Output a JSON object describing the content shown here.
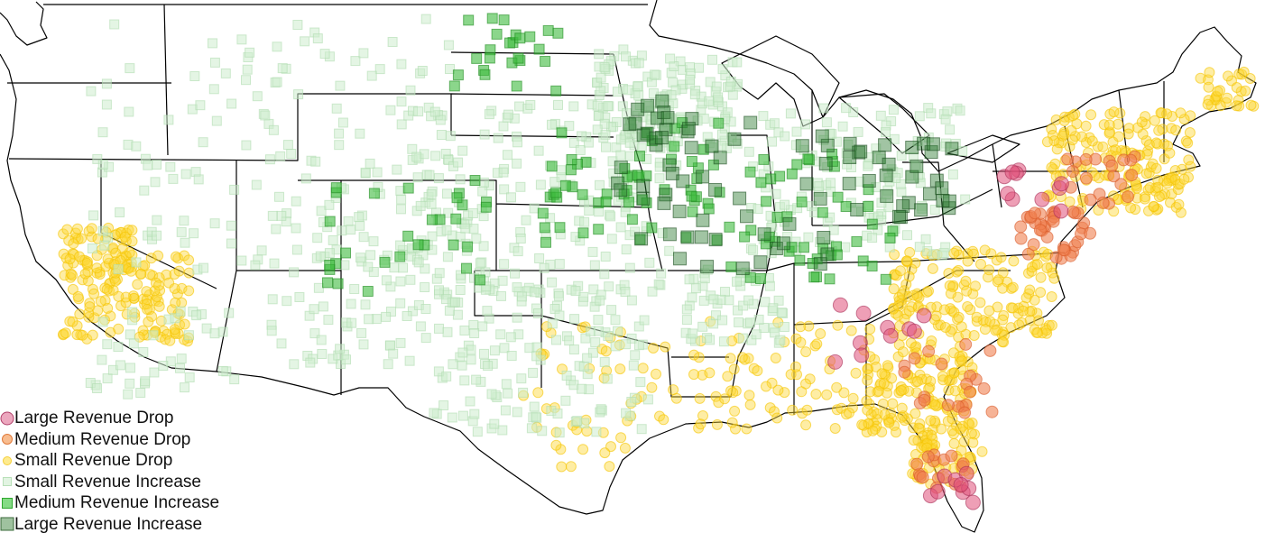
{
  "legend": [
    {
      "label": "Large Revenue Drop",
      "shape": "circle",
      "size": "large",
      "fill": "#e68aa8",
      "stroke": "#b0406a"
    },
    {
      "label": "Medium Revenue Drop",
      "shape": "circle",
      "size": "medium",
      "fill": "#f5a66a",
      "stroke": "#e07a3a"
    },
    {
      "label": "Small Revenue Drop",
      "shape": "circle",
      "size": "small",
      "fill": "#fde46a",
      "stroke": "#f5cf3a"
    },
    {
      "label": "Small Revenue Increase",
      "shape": "square",
      "size": "small",
      "fill": "#d8f0d8",
      "stroke": "#b8e0b8"
    },
    {
      "label": "Medium Revenue Increase",
      "shape": "square",
      "size": "medium",
      "fill": "#5ccf5c",
      "stroke": "#2fa82f"
    },
    {
      "label": "Large Revenue Increase",
      "shape": "square",
      "size": "large",
      "fill": "#7fae7f",
      "stroke": "#3a6a3a"
    }
  ],
  "colors": {
    "large_drop": "#e0507a",
    "medium_drop": "#f08050",
    "small_drop": "#fdd835",
    "small_increase": "#cdeccd",
    "medium_increase": "#3dbb3d",
    "large_increase": "#2e7d32",
    "state_border": "#000000"
  }
}
